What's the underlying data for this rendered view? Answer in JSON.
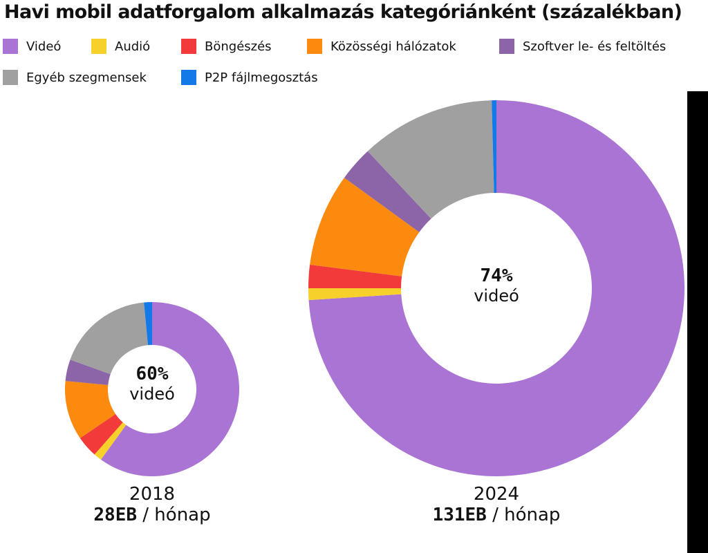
{
  "chart_data": {
    "type": "pie",
    "title": "Havi mobil adatforgalom alkalmazás kategóriánként (százalékban)",
    "legend_position": "top",
    "categories": [
      "Videó",
      "Audió",
      "Böngészés",
      "Közösségi hálózatok",
      "Szoftver le- és feltöltés",
      "Egyéb szegmensek",
      "P2P fájlmegosztás"
    ],
    "colors": [
      "#a974d4",
      "#f7d02b",
      "#f23a3a",
      "#fb8a0e",
      "#8c64a8",
      "#a0a0a0",
      "#1479e8"
    ],
    "charts": [
      {
        "year": "2018",
        "volume_value": "28EB",
        "volume_unit": "/ hónap",
        "center_pct": "60%",
        "center_word": "videó",
        "values": [
          60,
          1.5,
          4,
          11,
          4,
          18,
          1.5
        ]
      },
      {
        "year": "2024",
        "volume_value": "131EB",
        "volume_unit": "/ hónap",
        "center_pct": "74%",
        "center_word": "videó",
        "values": [
          74,
          1,
          2,
          8,
          3,
          11.6,
          0.4
        ]
      }
    ]
  }
}
